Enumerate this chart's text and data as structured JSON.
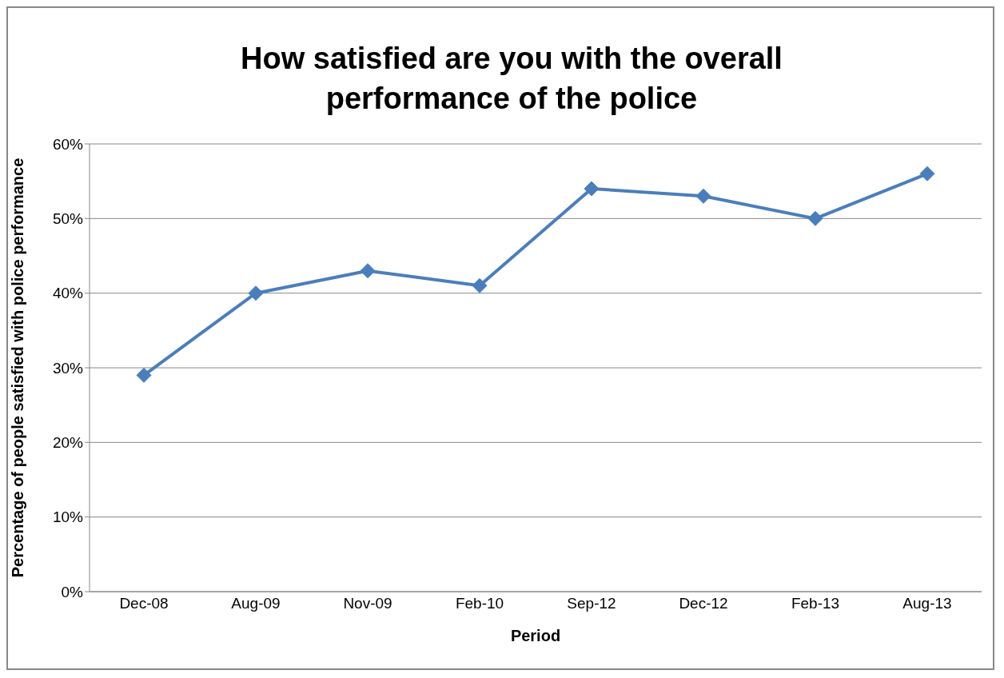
{
  "chart_data": {
    "type": "line",
    "title": "How satisfied are you with the overall performance of the police",
    "xlabel": "Period",
    "ylabel": "Percentage of people satisfied with police performance",
    "categories": [
      "Dec-08",
      "Aug-09",
      "Nov-09",
      "Feb-10",
      "Sep-12",
      "Dec-12",
      "Feb-13",
      "Aug-13"
    ],
    "series": [
      {
        "color": "#4a7ebb",
        "values": [
          29,
          40,
          43,
          41,
          54,
          53,
          50,
          56
        ]
      }
    ],
    "ylim": [
      0,
      60
    ],
    "yticks": [
      {
        "value": 0,
        "label": "0%"
      },
      {
        "value": 10,
        "label": "10%"
      },
      {
        "value": 20,
        "label": "20%"
      },
      {
        "value": 30,
        "label": "30%"
      },
      {
        "value": 40,
        "label": "40%"
      },
      {
        "value": 50,
        "label": "50%"
      },
      {
        "value": 60,
        "label": "60%"
      }
    ],
    "grid": "y",
    "marker": "diamond",
    "line_style": "solid"
  }
}
